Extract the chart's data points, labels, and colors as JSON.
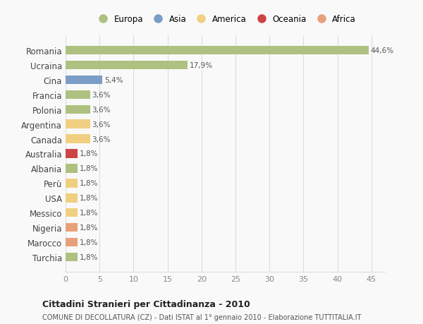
{
  "countries": [
    "Romania",
    "Ucraina",
    "Cina",
    "Francia",
    "Polonia",
    "Argentina",
    "Canada",
    "Australia",
    "Albania",
    "Perù",
    "USA",
    "Messico",
    "Nigeria",
    "Marocco",
    "Turchia"
  ],
  "values": [
    44.6,
    17.9,
    5.4,
    3.6,
    3.6,
    3.6,
    3.6,
    1.8,
    1.8,
    1.8,
    1.8,
    1.8,
    1.8,
    1.8,
    1.8
  ],
  "labels": [
    "44,6%",
    "17,9%",
    "5,4%",
    "3,6%",
    "3,6%",
    "3,6%",
    "3,6%",
    "1,8%",
    "1,8%",
    "1,8%",
    "1,8%",
    "1,8%",
    "1,8%",
    "1,8%",
    "1,8%"
  ],
  "colors": [
    "#aec180",
    "#aec180",
    "#7b9dc7",
    "#aec180",
    "#aec180",
    "#f0d080",
    "#f0d080",
    "#cc4444",
    "#aec180",
    "#f0d080",
    "#f0d080",
    "#f0d080",
    "#e8a07a",
    "#e8a07a",
    "#aec180"
  ],
  "legend_labels": [
    "Europa",
    "Asia",
    "America",
    "Oceania",
    "Africa"
  ],
  "legend_colors": [
    "#aec180",
    "#7b9dc7",
    "#f0d080",
    "#cc4444",
    "#e8a07a"
  ],
  "title": "Cittadini Stranieri per Cittadinanza - 2010",
  "subtitle": "COMUNE DI DECOLLATURA (CZ) - Dati ISTAT al 1° gennaio 2010 - Elaborazione TUTTITALIA.IT",
  "xlim": [
    0,
    47
  ],
  "xticks": [
    0,
    5,
    10,
    15,
    20,
    25,
    30,
    35,
    40,
    45
  ],
  "bg_color": "#f9f9f9",
  "grid_color": "#dddddd",
  "bar_height": 0.6
}
